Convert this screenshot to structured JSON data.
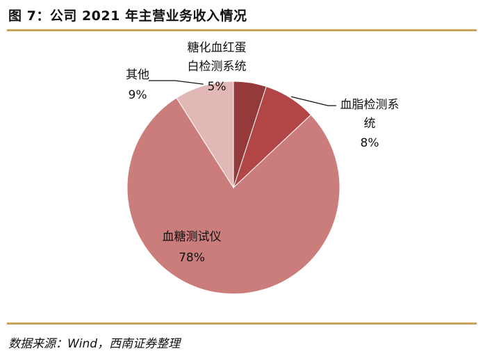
{
  "header": {
    "title": "图 7：公司 2021 年主营业务收入情况"
  },
  "footer": {
    "source": "数据来源：Wind，西南证券整理"
  },
  "chart_data": {
    "type": "pie",
    "title": "",
    "start_angle_deg": 90,
    "direction": "clockwise",
    "slices": [
      {
        "name": "糖化血红蛋白检测系统",
        "value": 5,
        "label_lines": [
          "糖化血红蛋",
          "白检测系统"
        ],
        "pct_label": "5%",
        "color": "#943a3a"
      },
      {
        "name": "血脂检测系统",
        "value": 8,
        "label_lines": [
          "血脂检测系",
          "统"
        ],
        "pct_label": "8%",
        "color": "#b24545"
      },
      {
        "name": "血糖测试仪",
        "value": 78,
        "label_lines": [
          "血糖测试仪"
        ],
        "pct_label": "78%",
        "color": "#cb7d7c"
      },
      {
        "name": "其他",
        "value": 9,
        "label_lines": [
          "其他"
        ],
        "pct_label": "9%",
        "color": "#e2b8b7"
      }
    ]
  }
}
